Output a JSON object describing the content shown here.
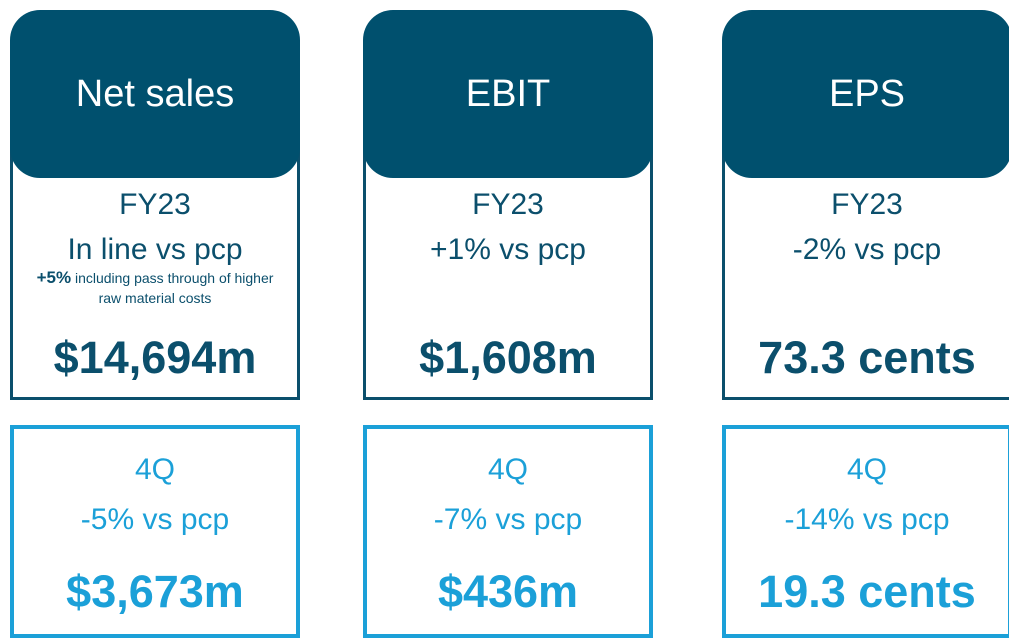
{
  "cards": [
    {
      "title": "Net sales",
      "fy_label": "FY23",
      "fy_change": "In line vs pcp",
      "note_bold": "+5%",
      "note_text": "including pass through of higher raw material costs",
      "fy_value": "$14,694m",
      "q_label": "4Q",
      "q_change": "-5% vs pcp",
      "q_value": "$3,673m"
    },
    {
      "title": "EBIT",
      "fy_label": "FY23",
      "fy_change": "+1% vs pcp",
      "fy_value": "$1,608m",
      "q_label": "4Q",
      "q_change": "-7% vs pcp",
      "q_value": "$436m"
    },
    {
      "title": "EPS",
      "fy_label": "FY23",
      "fy_change": "-2% vs pcp",
      "fy_value": "73.3 cents",
      "q_label": "4Q",
      "q_change": "-14% vs pcp",
      "q_value": "19.3 cents"
    }
  ]
}
